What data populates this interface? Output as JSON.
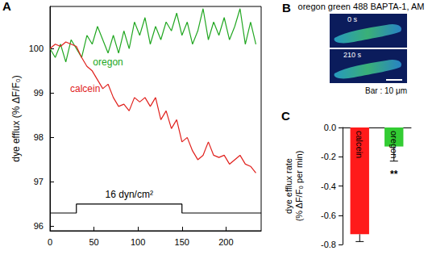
{
  "chart_data": [
    {
      "type": "line",
      "title": "A",
      "ylabel": "dye efflux (% ΔF/F₀)",
      "xlim": [
        0,
        240
      ],
      "xticks": [
        0,
        50,
        100,
        150,
        200
      ],
      "ylim": [
        95.9,
        100.95
      ],
      "yticks": [
        96,
        97,
        98,
        99,
        100
      ],
      "series": [
        {
          "color": "#22a722",
          "x": [
            0,
            6,
            12,
            18,
            24,
            30,
            36,
            42,
            48,
            54,
            60,
            66,
            72,
            78,
            84,
            90,
            96,
            102,
            108,
            114,
            120,
            126,
            132,
            138,
            144,
            150,
            156,
            162,
            168,
            174,
            180,
            186,
            192,
            198,
            204,
            210,
            216,
            222,
            228,
            234
          ],
          "values": [
            100,
            99.8,
            100.1,
            99.7,
            100.2,
            100,
            99.8,
            100.3,
            100.1,
            100.5,
            100.2,
            99.9,
            100.3,
            99.9,
            100.4,
            100,
            100.6,
            100.3,
            100.7,
            100.1,
            100.5,
            100.2,
            100.6,
            100.4,
            100.8,
            100.3,
            100.6,
            100.1,
            100.4,
            100.9,
            100.2,
            100.6,
            100.3,
            100.7,
            100.2,
            100.5,
            100.9,
            100.1,
            100.6,
            100.1
          ]
        },
        {
          "color": "#e0201c",
          "x": [
            0,
            6,
            12,
            18,
            24,
            30,
            36,
            42,
            48,
            54,
            60,
            66,
            72,
            78,
            84,
            90,
            96,
            102,
            108,
            114,
            120,
            126,
            132,
            138,
            144,
            150,
            156,
            162,
            168,
            174,
            180,
            186,
            192,
            198,
            204,
            210,
            216,
            222,
            228,
            234
          ],
          "values": [
            100,
            100.1,
            100.05,
            100.15,
            100.1,
            100.05,
            99.8,
            99.6,
            99.5,
            99.3,
            99.1,
            99.2,
            98.9,
            98.7,
            98.75,
            98.6,
            98.9,
            98.8,
            98.9,
            98.7,
            98.9,
            98.4,
            98.6,
            98.2,
            98.4,
            97.9,
            98.0,
            97.7,
            97.5,
            97.6,
            97.9,
            97.6,
            97.55,
            97.6,
            97.4,
            97.5,
            97.6,
            97.4,
            97.35,
            97.2
          ]
        },
        {
          "color": "#000000",
          "x": [
            0,
            30,
            30,
            150,
            150,
            240
          ],
          "values": [
            96.3,
            96.3,
            96.5,
            96.5,
            96.3,
            96.3
          ]
        }
      ],
      "annotations": [
        {
          "text": "oregon",
          "x": 66,
          "y": 99.7,
          "color": "#22a722"
        },
        {
          "text": "calcein",
          "x": 40,
          "y": 99.1,
          "color": "#e0201c"
        },
        {
          "text": "16 dyn/cm²",
          "x": 90,
          "y": 96.72,
          "color": "#000000"
        }
      ]
    },
    {
      "type": "bar",
      "title": "C",
      "ylabel": "dye efflux rate\n(% ΔF/F₀ per min)",
      "categories": [
        "calcein",
        "oregon"
      ],
      "values": [
        -0.73,
        -0.13
      ],
      "errors": [
        0.05,
        0.1
      ],
      "colors": [
        "#ff1a1a",
        "#33cc33"
      ],
      "ylim": [
        -0.8,
        0
      ],
      "yticks": [
        -0.8,
        -0.6,
        -0.4,
        -0.2,
        {
          "value": 0,
          "label": "0.0"
        }
      ],
      "tick_labels": "y",
      "annotations": [
        {
          "text": "**",
          "x": "oregon",
          "y": -0.32,
          "color": "#000000"
        }
      ]
    }
  ],
  "image_panel": {
    "label": "B",
    "title": "oregon green 488 BAPTA-1, AM",
    "frames": [
      "0 s",
      "210 s"
    ],
    "scale_bar": "Bar : 10 μm"
  }
}
